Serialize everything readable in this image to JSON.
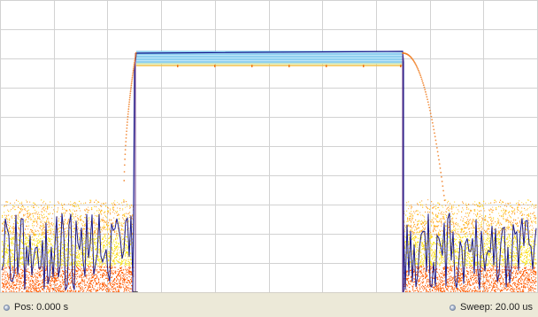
{
  "display": {
    "grid_color": "#d2d2d2",
    "trace_color": "#1a1a8c",
    "overlay_top_color": "#3aa8e0",
    "overlay_mid_color": "#f2c04a",
    "noise_colors": [
      "#ff9a1f",
      "#ffd21c",
      "#ff5a00",
      "#f5e900"
    ],
    "edge_curve_color": "#f07b1f"
  },
  "status": {
    "position_label": "Pos: 0.000 s",
    "sweep_label": "Sweep: 20.00 us",
    "position_icon": "radio-dot-icon",
    "sweep_icon": "radio-dot-icon"
  }
}
